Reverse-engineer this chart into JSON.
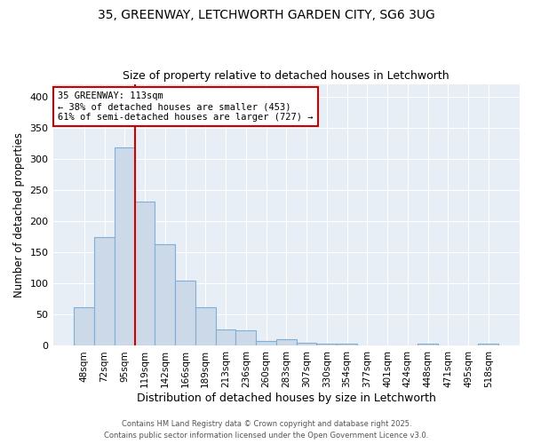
{
  "title1": "35, GREENWAY, LETCHWORTH GARDEN CITY, SG6 3UG",
  "title2": "Size of property relative to detached houses in Letchworth",
  "xlabel": "Distribution of detached houses by size in Letchworth",
  "ylabel": "Number of detached properties",
  "categories": [
    "48sqm",
    "72sqm",
    "95sqm",
    "119sqm",
    "142sqm",
    "166sqm",
    "189sqm",
    "213sqm",
    "236sqm",
    "260sqm",
    "283sqm",
    "307sqm",
    "330sqm",
    "354sqm",
    "377sqm",
    "401sqm",
    "424sqm",
    "448sqm",
    "471sqm",
    "495sqm",
    "518sqm"
  ],
  "values": [
    62,
    175,
    318,
    232,
    163,
    104,
    62,
    27,
    25,
    8,
    10,
    5,
    4,
    3,
    0,
    0,
    0,
    3,
    1,
    0,
    3
  ],
  "bar_color": "#ccd9e8",
  "bar_edge_color": "#7fafd4",
  "bar_edge_width": 0.8,
  "vline_x_index": 2.5,
  "vline_color": "#cc0000",
  "annotation_line1": "35 GREENWAY: 113sqm",
  "annotation_line2": "← 38% of detached houses are smaller (453)",
  "annotation_line3": "61% of semi-detached houses are larger (727) →",
  "annotation_box_color": "#ffffff",
  "annotation_box_edge_color": "#cc0000",
  "ylim": [
    0,
    420
  ],
  "yticks": [
    0,
    50,
    100,
    150,
    200,
    250,
    300,
    350,
    400
  ],
  "fig_bg_color": "#ffffff",
  "plot_bg_color": "#e8eef5",
  "grid_color": "#ffffff",
  "footer1": "Contains HM Land Registry data © Crown copyright and database right 2025.",
  "footer2": "Contains public sector information licensed under the Open Government Licence v3.0."
}
